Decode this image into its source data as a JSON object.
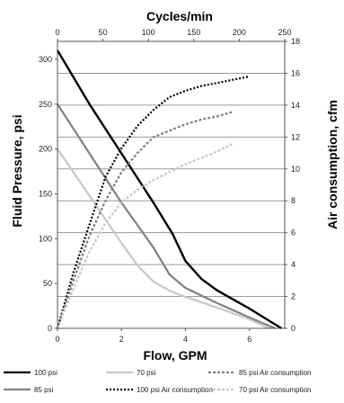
{
  "chart_data": {
    "type": "line",
    "top_axis": {
      "label": "Cycles/min",
      "range": [
        0,
        250
      ],
      "ticks": [
        0,
        50,
        100,
        150,
        200,
        250
      ]
    },
    "x_axis": {
      "label": "Flow, GPM",
      "range": [
        0,
        7.1
      ],
      "ticks": [
        0,
        2,
        4,
        6
      ]
    },
    "y_left": {
      "label": "Fluid Pressure, psi",
      "range": [
        0,
        320
      ],
      "ticks": [
        0,
        50,
        100,
        150,
        200,
        250,
        300
      ]
    },
    "y_right": {
      "label": "Air consumption, cfm",
      "range": [
        0,
        18
      ],
      "ticks": [
        0,
        2,
        4,
        6,
        8,
        10,
        12,
        14,
        16,
        18
      ]
    },
    "grid": true,
    "legend_position": "bottom",
    "series": [
      {
        "name": "100 psi",
        "axis": "left",
        "color": "#000000",
        "style": "solid",
        "x": [
          0,
          1,
          2,
          3,
          3.6,
          4,
          4.5,
          5,
          6,
          7
        ],
        "y": [
          310,
          250,
          195,
          140,
          105,
          75,
          55,
          42,
          22,
          0
        ]
      },
      {
        "name": "85 psi",
        "axis": "left",
        "color": "#808080",
        "style": "solid",
        "x": [
          0,
          1,
          2,
          3,
          3.5,
          4,
          5,
          6,
          6.8
        ],
        "y": [
          250,
          195,
          140,
          90,
          60,
          45,
          28,
          12,
          0
        ]
      },
      {
        "name": "70 psi",
        "axis": "left",
        "color": "#c8c8c8",
        "style": "solid",
        "x": [
          0,
          1,
          2,
          2.5,
          3,
          3.5,
          4,
          5,
          6,
          6.6
        ],
        "y": [
          200,
          148,
          95,
          70,
          52,
          42,
          35,
          23,
          10,
          0
        ]
      },
      {
        "name": "100 psi Air consumption",
        "axis": "right",
        "color": "#000000",
        "style": "dotted",
        "x": [
          0,
          0.5,
          1,
          1.5,
          2,
          2.5,
          3,
          3.5,
          4,
          4.5,
          5,
          5.5,
          6
        ],
        "y": [
          0,
          3.5,
          6.5,
          9.5,
          11.3,
          12.7,
          13.7,
          14.5,
          14.9,
          15.2,
          15.4,
          15.6,
          15.8
        ]
      },
      {
        "name": "85 psi Air consumption",
        "axis": "right",
        "color": "#808080",
        "style": "dashed",
        "x": [
          0,
          0.5,
          1,
          1.5,
          2,
          2.5,
          3,
          3.5,
          4,
          4.5,
          5,
          5.5
        ],
        "y": [
          0,
          3,
          5.8,
          8,
          9.8,
          11,
          12,
          12.4,
          12.8,
          13.1,
          13.3,
          13.6
        ]
      },
      {
        "name": "70 psi Air consumption",
        "axis": "right",
        "color": "#c8c8c8",
        "style": "dashed",
        "x": [
          0,
          0.5,
          1,
          1.5,
          2,
          2.5,
          3,
          3.5,
          4,
          4.5,
          5,
          5.5
        ],
        "y": [
          0,
          2.5,
          4.8,
          6.6,
          7.9,
          8.7,
          9.3,
          9.8,
          10.3,
          10.7,
          11.1,
          11.6
        ]
      }
    ]
  }
}
